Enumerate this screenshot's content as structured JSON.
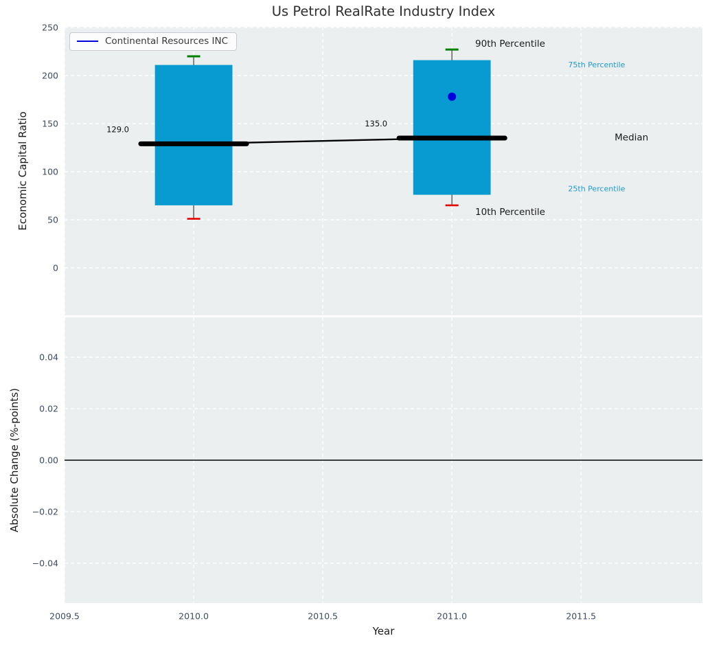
{
  "figure": {
    "title": "Us Petrol RealRate Industry Index",
    "background": "#ffffff"
  },
  "legend": {
    "label": "Continental Resources INC",
    "line_color": "#0000e0"
  },
  "colors": {
    "axes_background": "#eceff0",
    "grid": "#ffffff",
    "box_fill": "#089bd1",
    "whisker_line": "#4d4d4d",
    "p90_cap": "#008000",
    "p10_cap": "#e50000",
    "median_line": "#000000",
    "company_marker": "#0000dd",
    "tick_label": "#3d4b63",
    "annotation_dark": "#1a1a1a",
    "annotation_percentile": "#1f9acb",
    "zero_line": "#000000"
  },
  "chart_data": [
    {
      "type": "boxplot",
      "title": "Us Petrol RealRate Industry Index",
      "ylabel": "Economic Capital Ratio",
      "ylim": [
        -49.3,
        250.7
      ],
      "yticks": [
        0,
        50,
        100,
        150,
        200,
        250
      ],
      "yticklabels": [
        "0",
        "50",
        "100",
        "150",
        "200",
        "250"
      ],
      "xlim": [
        2009.5,
        2011.97
      ],
      "xticks": [
        2009.5,
        2010.0,
        2010.5,
        2011.0,
        2011.5
      ],
      "grid": true,
      "legend_position": "upper left",
      "boxes": [
        {
          "x": 2010,
          "p10": 51,
          "q1": 65,
          "median": 129,
          "q3": 211,
          "p90": 220,
          "median_label": "129.0",
          "median_label_x": 2009.75,
          "median_label_y": 141
        },
        {
          "x": 2011,
          "p10": 65,
          "q1": 76,
          "median": 135,
          "q3": 216,
          "p90": 227,
          "median_label": "135.0",
          "median_label_x": 2010.75,
          "median_label_y": 147,
          "company_value": 178
        }
      ],
      "box_halfwidth": 0.15,
      "median_bar_halfwidth": 0.205,
      "median_trend": [
        [
          2010,
          129
        ],
        [
          2011,
          135
        ]
      ],
      "company_series": {
        "name": "Continental Resources INC",
        "points": [
          [
            2011,
            178
          ]
        ]
      },
      "annotations": [
        {
          "text": "90th Percentile",
          "x": 2011.09,
          "y": 233,
          "color_key": "annotation_dark",
          "size": 13.5
        },
        {
          "text": "75th Percentile",
          "x": 2011.45,
          "y": 211,
          "color_key": "annotation_percentile",
          "size": 11
        },
        {
          "text": "Median",
          "x": 2011.63,
          "y": 135.5,
          "color_key": "annotation_dark",
          "size": 13.5
        },
        {
          "text": "25th Percentile",
          "x": 2011.45,
          "y": 82,
          "color_key": "annotation_percentile",
          "size": 11
        },
        {
          "text": "10th Percentile",
          "x": 2011.09,
          "y": 58,
          "color_key": "annotation_dark",
          "size": 13.5
        }
      ]
    },
    {
      "type": "line",
      "ylabel": "Absolute Change (%-points)",
      "xlabel": "Year",
      "ylim": [
        -0.0555,
        0.0555
      ],
      "yticks": [
        0.04,
        0.02,
        0.0,
        -0.02,
        -0.04
      ],
      "yticklabels": [
        "0.04",
        "0.02",
        "0.00",
        "−0.02",
        "−0.04"
      ],
      "xlim": [
        2009.5,
        2011.97
      ],
      "xticks": [
        2009.5,
        2010.0,
        2010.5,
        2011.0,
        2011.5
      ],
      "xticklabels": [
        "2009.5",
        "2010.0",
        "2010.5",
        "2011.0",
        "2011.5"
      ],
      "grid": true,
      "zero_line_y": 0.0
    }
  ]
}
